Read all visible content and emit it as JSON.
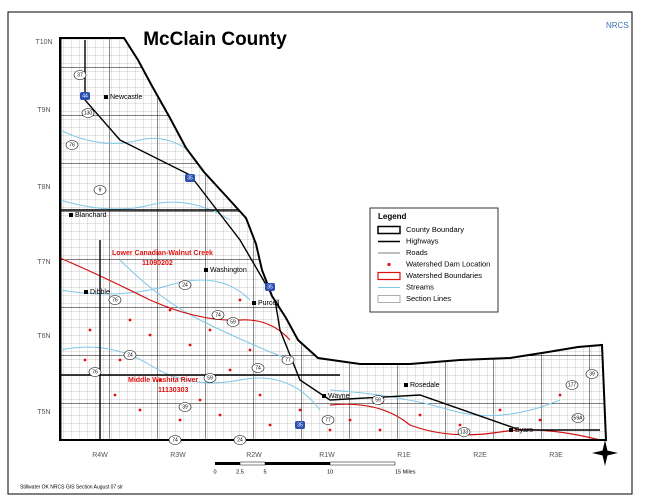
{
  "title": "McClain County",
  "logo": "NRCS",
  "legend": {
    "title": "Legend",
    "items": [
      "County Boundary",
      "Highways",
      "Roads",
      "Watershed Dam Location",
      "Watershed Boundaries",
      "Streams",
      "Section Lines"
    ]
  },
  "townships": [
    "T10N",
    "T9N",
    "T8N",
    "T7N",
    "T6N",
    "T5N"
  ],
  "ranges": [
    "R4W",
    "R3W",
    "R2W",
    "R1W",
    "R1E",
    "R2E",
    "R3E"
  ],
  "towns": [
    "Newcastle",
    "Blanchard",
    "Washington",
    "Dibble",
    "Purcell",
    "Wayne",
    "Rosedale",
    "Byars"
  ],
  "watersheds": [
    {
      "name": "Lower Canadian-Walnut Creek",
      "code": "11090202"
    },
    {
      "name": "Middle Washita River",
      "code": "11130303"
    }
  ],
  "interstates": [
    "44",
    "35",
    "35",
    "35"
  ],
  "highways": [
    "37",
    "130",
    "76",
    "9",
    "76",
    "24",
    "74",
    "24",
    "59",
    "74",
    "77",
    "76",
    "59",
    "39",
    "74",
    "24",
    "77",
    "59",
    "177",
    "59A",
    "133",
    "39"
  ],
  "scale_labels": [
    "0",
    "2.5",
    "5",
    "10",
    "15 Miles"
  ],
  "credit": "Stillwater OK NRCS GIS Section August 07 slr"
}
